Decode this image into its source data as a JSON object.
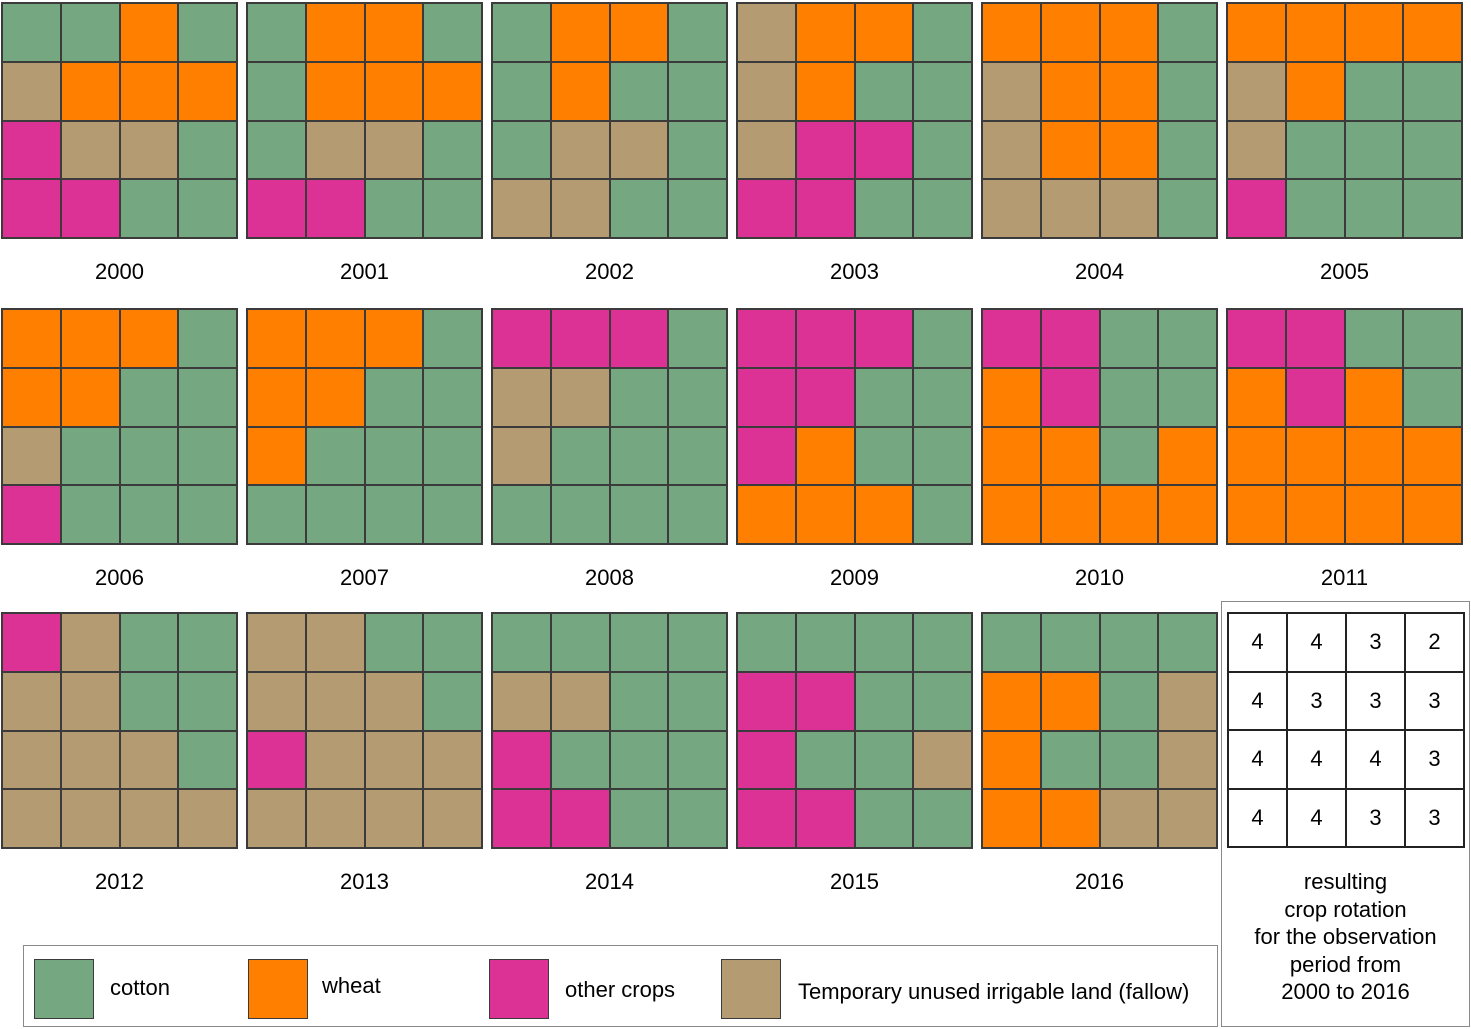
{
  "colors": {
    "C": "#75a881",
    "W": "#ff7f00",
    "O": "#dd3295",
    "F": "#b59b72"
  },
  "years": [
    {
      "label": "2000",
      "grid": [
        "CCWC",
        "FWWW",
        "OFFC",
        "OOCC"
      ]
    },
    {
      "label": "2001",
      "grid": [
        "CWWC",
        "CWWW",
        "CFFC",
        "OOCC"
      ]
    },
    {
      "label": "2002",
      "grid": [
        "CWWC",
        "CWCC",
        "CFFC",
        "FFCC"
      ]
    },
    {
      "label": "2003",
      "grid": [
        "FWWC",
        "FWCC",
        "FOOC",
        "OOCC"
      ]
    },
    {
      "label": "2004",
      "grid": [
        "WWWC",
        "FWWC",
        "FWWC",
        "FFFC"
      ]
    },
    {
      "label": "2005",
      "grid": [
        "WWWW",
        "FWCC",
        "FCCC",
        "OCCC"
      ]
    },
    {
      "label": "2006",
      "grid": [
        "WWWC",
        "WWCC",
        "FCCC",
        "OCCC"
      ]
    },
    {
      "label": "2007",
      "grid": [
        "WWWC",
        "WWCC",
        "WCCC",
        "CCCC"
      ]
    },
    {
      "label": "2008",
      "grid": [
        "OOOC",
        "FFCC",
        "FCCC",
        "CCCC"
      ]
    },
    {
      "label": "2009",
      "grid": [
        "OOOC",
        "OOCC",
        "OWCC",
        "WWWC"
      ]
    },
    {
      "label": "2010",
      "grid": [
        "OOCC",
        "WOCC",
        "WWCW",
        "WWWW"
      ]
    },
    {
      "label": "2011",
      "grid": [
        "OOCC",
        "WOWC",
        "WWWW",
        "WWWW"
      ]
    },
    {
      "label": "2012",
      "grid": [
        "OFCC",
        "FFCC",
        "FFFC",
        "FFFF"
      ]
    },
    {
      "label": "2013",
      "grid": [
        "FFCC",
        "FFFC",
        "OFFF",
        "FFFF"
      ]
    },
    {
      "label": "2014",
      "grid": [
        "CCCC",
        "FFCC",
        "OCCC",
        "OOCC"
      ]
    },
    {
      "label": "2015",
      "grid": [
        "CCCC",
        "OOCC",
        "OCCF",
        "OOCC"
      ]
    },
    {
      "label": "2016",
      "grid": [
        "CCCC",
        "WWCF",
        "WCCF",
        "WWFF"
      ]
    }
  ],
  "result": {
    "values": [
      [
        "4",
        "4",
        "3",
        "2"
      ],
      [
        "4",
        "3",
        "3",
        "3"
      ],
      [
        "4",
        "4",
        "4",
        "3"
      ],
      [
        "4",
        "4",
        "3",
        "3"
      ]
    ],
    "caption": [
      "resulting",
      "crop rotation",
      "for the observation",
      "period from",
      "2000 to 2016"
    ]
  },
  "legend": [
    {
      "key": "C",
      "label": "cotton"
    },
    {
      "key": "W",
      "label": "wheat"
    },
    {
      "key": "O",
      "label": "other crops"
    },
    {
      "key": "F",
      "label": "Temporary unused irrigable land (fallow)"
    }
  ]
}
